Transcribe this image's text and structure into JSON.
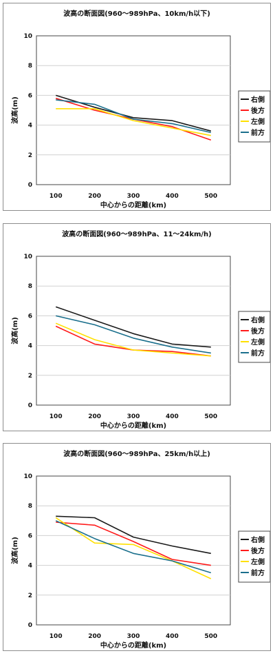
{
  "colors": {
    "right": "#1a1a1a",
    "back": "#ff1a1a",
    "left": "#ffe000",
    "front": "#1a6f8c",
    "grid": "#d0d0d0"
  },
  "chart_data": [
    {
      "type": "line",
      "title": "波高の断面図(960～989hPa、10km/h以下)",
      "xlabel": "中心からの距離(km)",
      "ylabel": "波高(m)",
      "x": [
        100,
        200,
        300,
        400,
        500
      ],
      "ylim": [
        0,
        10
      ],
      "yticks": [
        0,
        2,
        4,
        6,
        8,
        10
      ],
      "grid": true,
      "legend_position": "right",
      "series": [
        {
          "name": "右側",
          "color": "#1a1a1a",
          "values": [
            6.0,
            5.2,
            4.5,
            4.3,
            3.6
          ]
        },
        {
          "name": "後方",
          "color": "#ff1a1a",
          "values": [
            5.8,
            5.0,
            4.4,
            3.9,
            3.0
          ]
        },
        {
          "name": "左側",
          "color": "#ffe000",
          "values": [
            5.1,
            5.1,
            4.3,
            3.8,
            3.3
          ]
        },
        {
          "name": "前方",
          "color": "#1a6f8c",
          "values": [
            5.7,
            5.4,
            4.4,
            4.1,
            3.5
          ]
        }
      ]
    },
    {
      "type": "line",
      "title": "波高の断面図(960～989hPa、11～24km/h)",
      "xlabel": "中心からの距離(km)",
      "ylabel": "波高(m)",
      "x": [
        100,
        200,
        300,
        400,
        500
      ],
      "ylim": [
        0,
        10
      ],
      "yticks": [
        0,
        2,
        4,
        6,
        8,
        10
      ],
      "grid": true,
      "legend_position": "right",
      "series": [
        {
          "name": "右側",
          "color": "#1a1a1a",
          "values": [
            6.6,
            5.7,
            4.8,
            4.1,
            3.9
          ]
        },
        {
          "name": "後方",
          "color": "#ff1a1a",
          "values": [
            5.3,
            4.1,
            3.7,
            3.6,
            3.3
          ]
        },
        {
          "name": "左側",
          "color": "#ffe000",
          "values": [
            5.5,
            4.4,
            3.7,
            3.5,
            3.3
          ]
        },
        {
          "name": "前方",
          "color": "#1a6f8c",
          "values": [
            6.0,
            5.4,
            4.5,
            3.9,
            3.5
          ]
        }
      ]
    },
    {
      "type": "line",
      "title": "波高の断面図(960～989hPa、25km/h以上)",
      "xlabel": "中心からの距離(km)",
      "ylabel": "波高(m)",
      "x": [
        100,
        200,
        300,
        400,
        500
      ],
      "ylim": [
        0,
        10
      ],
      "yticks": [
        0,
        2,
        4,
        6,
        8,
        10
      ],
      "grid": true,
      "legend_position": "right",
      "series": [
        {
          "name": "右側",
          "color": "#1a1a1a",
          "values": [
            7.3,
            7.2,
            5.9,
            5.3,
            4.8
          ]
        },
        {
          "name": "後方",
          "color": "#ff1a1a",
          "values": [
            6.9,
            6.7,
            5.6,
            4.4,
            4.0
          ]
        },
        {
          "name": "左側",
          "color": "#ffe000",
          "values": [
            7.2,
            5.5,
            5.4,
            4.3,
            3.1
          ]
        },
        {
          "name": "前方",
          "color": "#1a6f8c",
          "values": [
            7.0,
            5.8,
            4.8,
            4.3,
            3.5
          ]
        }
      ]
    }
  ]
}
